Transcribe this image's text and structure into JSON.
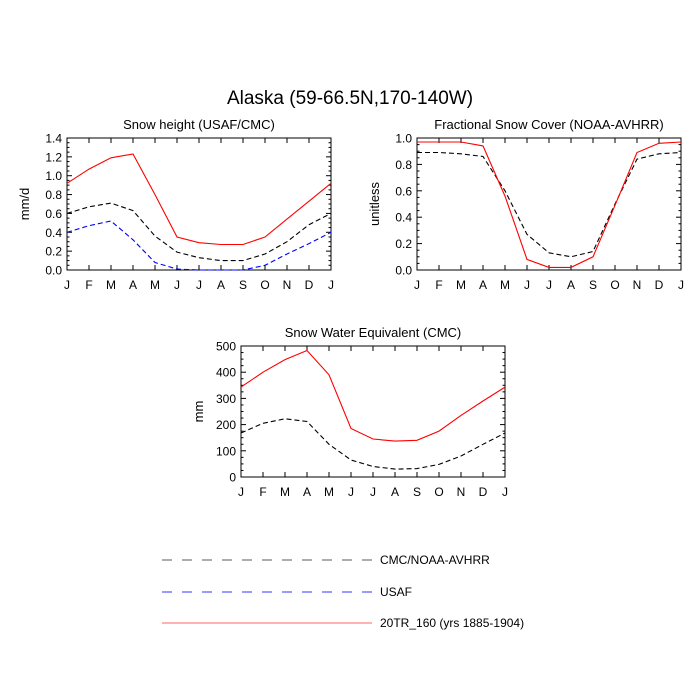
{
  "main_title": "Alaska (59-66.5N,170-140W)",
  "legend": [
    {
      "label": "CMC/NOAA-AVHRR",
      "color": "#000000",
      "dash": true
    },
    {
      "label": "USAF",
      "color": "#0000ff",
      "dash": true
    },
    {
      "label": "20TR_160 (yrs 1885-1904)",
      "color": "#ff0000",
      "dash": false
    }
  ],
  "chart_data": [
    {
      "type": "line",
      "title": "Snow height (USAF/CMC)",
      "xlabel": "",
      "ylabel": "mm/d",
      "categories": [
        "J",
        "F",
        "M",
        "A",
        "M",
        "J",
        "J",
        "A",
        "S",
        "O",
        "N",
        "D",
        "J"
      ],
      "ylim": [
        0,
        1.4
      ],
      "yticks": [
        0.0,
        0.2,
        0.4,
        0.6,
        0.8,
        1.0,
        1.2,
        1.4
      ],
      "ytick_labels": [
        "0.0",
        "0.2",
        "0.4",
        "0.6",
        "0.8",
        "1.0",
        "1.2",
        "1.4"
      ],
      "series": [
        {
          "name": "CMC/NOAA-AVHRR",
          "color": "#000000",
          "dash": true,
          "values": [
            0.6,
            0.67,
            0.71,
            0.63,
            0.36,
            0.19,
            0.13,
            0.1,
            0.1,
            0.17,
            0.3,
            0.48,
            0.6
          ]
        },
        {
          "name": "USAF",
          "color": "#0000ff",
          "dash": true,
          "values": [
            0.4,
            0.47,
            0.52,
            0.32,
            0.08,
            0.01,
            0.0,
            0.0,
            0.0,
            0.05,
            0.17,
            0.28,
            0.4
          ]
        },
        {
          "name": "20TR_160 (yrs 1885-1904)",
          "color": "#ff0000",
          "dash": false,
          "values": [
            0.92,
            1.07,
            1.19,
            1.23,
            0.8,
            0.35,
            0.29,
            0.27,
            0.27,
            0.35,
            0.54,
            0.73,
            0.92
          ]
        }
      ]
    },
    {
      "type": "line",
      "title": "Fractional Snow Cover (NOAA-AVHRR)",
      "xlabel": "",
      "ylabel": "unitless",
      "categories": [
        "J",
        "F",
        "M",
        "A",
        "M",
        "J",
        "J",
        "A",
        "S",
        "O",
        "N",
        "D",
        "J"
      ],
      "ylim": [
        0,
        1.0
      ],
      "yticks": [
        0.0,
        0.2,
        0.4,
        0.6,
        0.8,
        1.0
      ],
      "ytick_labels": [
        "0.0",
        "0.2",
        "0.4",
        "0.6",
        "0.8",
        "1.0"
      ],
      "series": [
        {
          "name": "CMC/NOAA-AVHRR",
          "color": "#000000",
          "dash": true,
          "values": [
            0.89,
            0.89,
            0.88,
            0.86,
            0.6,
            0.27,
            0.13,
            0.1,
            0.14,
            0.5,
            0.84,
            0.88,
            0.89
          ]
        },
        {
          "name": "20TR_160 (yrs 1885-1904)",
          "color": "#ff0000",
          "dash": false,
          "values": [
            0.97,
            0.97,
            0.97,
            0.94,
            0.56,
            0.08,
            0.02,
            0.02,
            0.1,
            0.49,
            0.89,
            0.96,
            0.97
          ]
        }
      ]
    },
    {
      "type": "line",
      "title": "Snow Water Equivalent (CMC)",
      "xlabel": "",
      "ylabel": "mm",
      "categories": [
        "J",
        "F",
        "M",
        "A",
        "M",
        "J",
        "J",
        "A",
        "S",
        "O",
        "N",
        "D",
        "J"
      ],
      "ylim": [
        0,
        500
      ],
      "yticks": [
        0,
        100,
        200,
        300,
        400,
        500
      ],
      "ytick_labels": [
        "0",
        "100",
        "200",
        "300",
        "400",
        "500"
      ],
      "series": [
        {
          "name": "CMC/NOAA-AVHRR",
          "color": "#000000",
          "dash": true,
          "values": [
            168,
            205,
            222,
            212,
            125,
            65,
            40,
            30,
            32,
            48,
            80,
            125,
            168
          ]
        },
        {
          "name": "20TR_160 (yrs 1885-1904)",
          "color": "#ff0000",
          "dash": false,
          "values": [
            343,
            400,
            448,
            483,
            390,
            185,
            145,
            137,
            140,
            175,
            235,
            290,
            343
          ]
        }
      ]
    }
  ]
}
